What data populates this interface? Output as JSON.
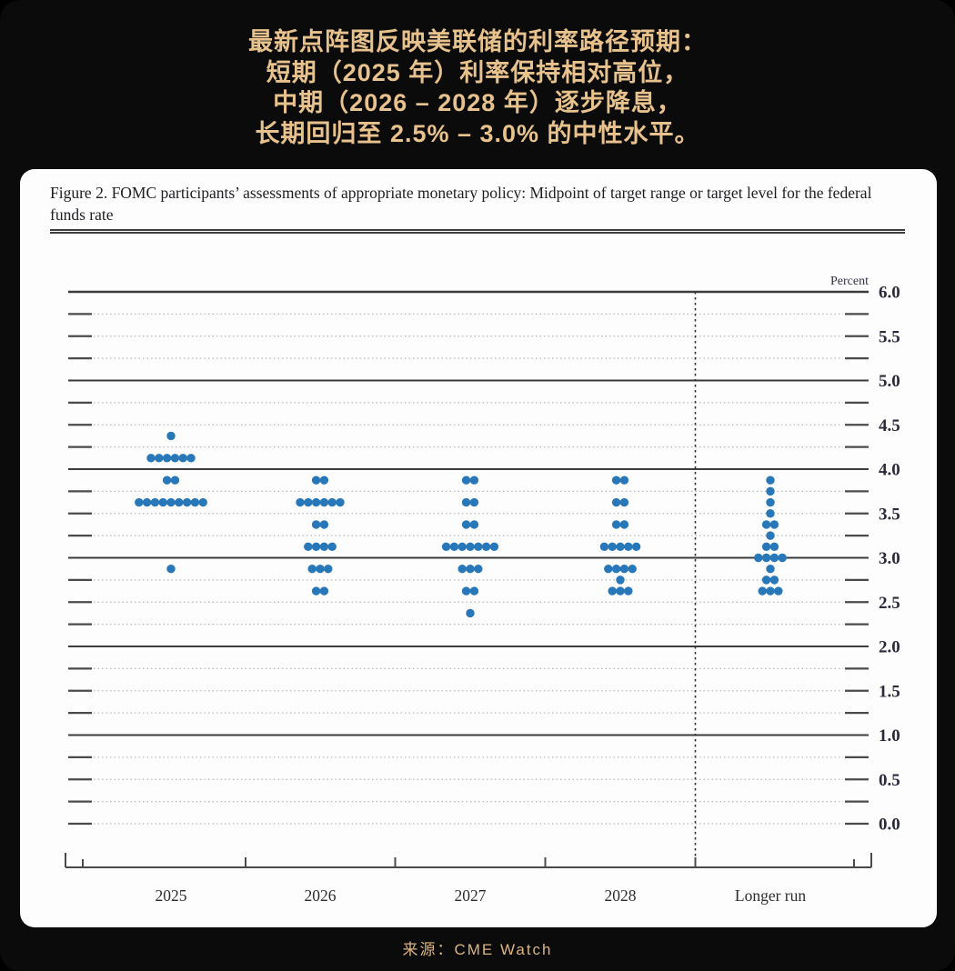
{
  "header": {
    "title_lines": [
      "最新点阵图反映美联储的利率路径预期：",
      "短期（2025 年）利率保持相对高位，",
      "中期（2026 – 2028 年）逐步降息，",
      "长期回归至 2.5% – 3.0% 的中性水平。"
    ],
    "accent_color": "#e8c28c"
  },
  "figure": {
    "title": "Figure 2. FOMC participants’ assessments of appropriate monetary policy: Midpoint of target range or target level for the federal funds rate"
  },
  "chart_data": {
    "type": "scatter",
    "subtype": "fomc-dot-plot",
    "title": "FOMC participants’ assessments of appropriate monetary policy: Midpoint of target range or target level for the federal funds rate",
    "ylabel": "Percent",
    "ylim": [
      0.0,
      6.0
    ],
    "ytick_step": 0.5,
    "grid_step": 0.25,
    "grid": "dotted quarter-point lines, solid lines at integer percents",
    "yticks": [
      "6.0",
      "5.5",
      "5.0",
      "4.5",
      "4.0",
      "3.5",
      "3.0",
      "2.5",
      "2.0",
      "1.5",
      "1.0",
      "0.5",
      "0.0"
    ],
    "solid_gridlines": [
      6.0,
      5.0,
      4.0,
      3.0,
      2.0,
      1.0
    ],
    "categories": [
      "2025",
      "2026",
      "2027",
      "2028",
      "Longer run"
    ],
    "separator_before_category": "Longer run",
    "dot_color": "#2777b9",
    "percent_label": "Percent",
    "columns": [
      {
        "label": "2025",
        "dots": [
          {
            "rate": 4.375,
            "count": 1
          },
          {
            "rate": 4.125,
            "count": 6
          },
          {
            "rate": 3.875,
            "count": 2
          },
          {
            "rate": 3.625,
            "count": 9
          },
          {
            "rate": 2.875,
            "count": 1
          }
        ]
      },
      {
        "label": "2026",
        "dots": [
          {
            "rate": 3.875,
            "count": 2
          },
          {
            "rate": 3.625,
            "count": 6
          },
          {
            "rate": 3.375,
            "count": 2
          },
          {
            "rate": 3.125,
            "count": 4
          },
          {
            "rate": 2.875,
            "count": 3
          },
          {
            "rate": 2.625,
            "count": 2
          }
        ]
      },
      {
        "label": "2027",
        "dots": [
          {
            "rate": 3.875,
            "count": 2
          },
          {
            "rate": 3.625,
            "count": 2
          },
          {
            "rate": 3.375,
            "count": 2
          },
          {
            "rate": 3.125,
            "count": 7
          },
          {
            "rate": 2.875,
            "count": 3
          },
          {
            "rate": 2.625,
            "count": 2
          },
          {
            "rate": 2.375,
            "count": 1
          }
        ]
      },
      {
        "label": "2028",
        "dots": [
          {
            "rate": 3.875,
            "count": 2
          },
          {
            "rate": 3.625,
            "count": 2
          },
          {
            "rate": 3.375,
            "count": 2
          },
          {
            "rate": 3.125,
            "count": 5
          },
          {
            "rate": 2.875,
            "count": 4
          },
          {
            "rate": 2.75,
            "count": 1
          },
          {
            "rate": 2.625,
            "count": 3
          }
        ]
      },
      {
        "label": "Longer run",
        "dots": [
          {
            "rate": 3.875,
            "count": 1
          },
          {
            "rate": 3.75,
            "count": 1
          },
          {
            "rate": 3.625,
            "count": 1
          },
          {
            "rate": 3.5,
            "count": 1
          },
          {
            "rate": 3.375,
            "count": 2
          },
          {
            "rate": 3.25,
            "count": 1
          },
          {
            "rate": 3.125,
            "count": 2
          },
          {
            "rate": 3.0,
            "count": 4
          },
          {
            "rate": 2.875,
            "count": 1
          },
          {
            "rate": 2.75,
            "count": 2
          },
          {
            "rate": 2.625,
            "count": 3
          }
        ]
      }
    ]
  },
  "footer": {
    "source": "来源：CME Watch"
  }
}
